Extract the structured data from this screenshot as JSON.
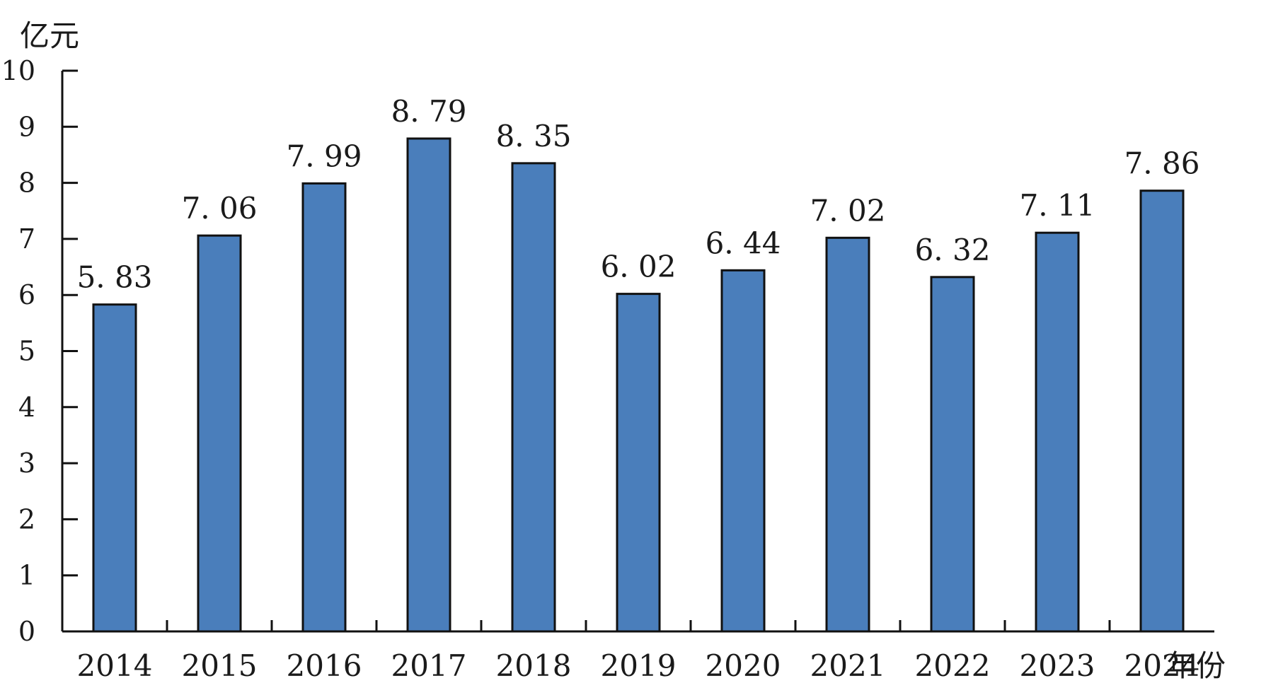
{
  "chart_data": {
    "type": "bar",
    "categories": [
      "2014",
      "2015",
      "2016",
      "2017",
      "2018",
      "2019",
      "2020",
      "2021",
      "2022",
      "2023",
      "2024"
    ],
    "values": [
      5.83,
      7.06,
      7.99,
      8.79,
      8.35,
      6.02,
      6.44,
      7.02,
      6.32,
      7.11,
      7.86
    ],
    "value_labels": [
      "5. 83",
      "7. 06",
      "7. 99",
      "8. 79",
      "8. 35",
      "6. 02",
      "6. 44",
      "7. 02",
      "6. 32",
      "7. 11",
      "7. 86"
    ],
    "xlabel": "年份",
    "ylabel": "亿元",
    "ylim": [
      0,
      10
    ],
    "yticks": [
      "0",
      "1",
      "2",
      "3",
      "4",
      "5",
      "6",
      "7",
      "8",
      "9",
      "10"
    ],
    "grid": false,
    "bar_color": "#4a7ebb",
    "bar_edge_color": "#111111"
  }
}
